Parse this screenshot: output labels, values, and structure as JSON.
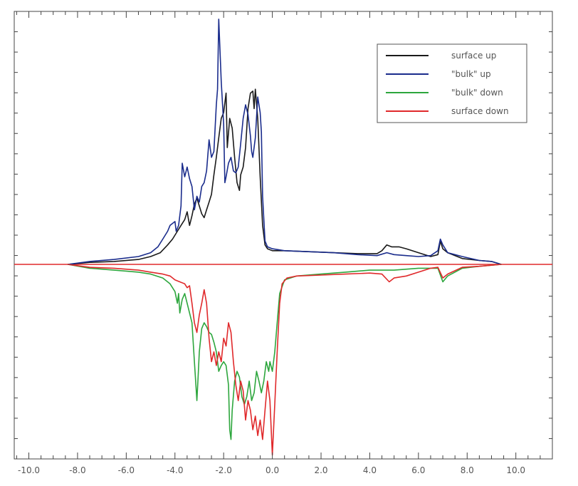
{
  "chart_data": {
    "type": "line",
    "title": "",
    "xlabel": "",
    "ylabel": "",
    "xlim": [
      -10.6,
      11.5
    ],
    "ylim": [
      -1.0,
      1.3
    ],
    "x_ticks": [
      -10.0,
      -8.0,
      -6.0,
      -4.0,
      -2.0,
      0.0,
      2.0,
      4.0,
      6.0,
      8.0,
      10.0
    ],
    "x_tick_labels": [
      "-10.0",
      "-8.0",
      "-6.0",
      "-4.0",
      "-2.0",
      "0.0",
      "2.0",
      "4.0",
      "6.0",
      "8.0",
      "10.0"
    ],
    "grid": false,
    "legend_position": "top-right",
    "zero_line_color": "#e0292b",
    "series": [
      {
        "name": "surface up",
        "color": "#1a1a1a",
        "points": [
          [
            -8.4,
            0.0
          ],
          [
            -7.5,
            0.01
          ],
          [
            -6.5,
            0.015
          ],
          [
            -5.5,
            0.025
          ],
          [
            -5.0,
            0.04
          ],
          [
            -4.6,
            0.06
          ],
          [
            -4.3,
            0.1
          ],
          [
            -4.1,
            0.13
          ],
          [
            -3.9,
            0.17
          ],
          [
            -3.75,
            0.2
          ],
          [
            -3.6,
            0.23
          ],
          [
            -3.5,
            0.27
          ],
          [
            -3.4,
            0.2
          ],
          [
            -3.3,
            0.25
          ],
          [
            -3.2,
            0.31
          ],
          [
            -3.1,
            0.34
          ],
          [
            -3.0,
            0.3
          ],
          [
            -2.9,
            0.26
          ],
          [
            -2.8,
            0.24
          ],
          [
            -2.7,
            0.28
          ],
          [
            -2.6,
            0.32
          ],
          [
            -2.5,
            0.36
          ],
          [
            -2.4,
            0.46
          ],
          [
            -2.3,
            0.55
          ],
          [
            -2.2,
            0.65
          ],
          [
            -2.1,
            0.75
          ],
          [
            -2.0,
            0.78
          ],
          [
            -1.9,
            0.88
          ],
          [
            -1.85,
            0.6
          ],
          [
            -1.75,
            0.75
          ],
          [
            -1.65,
            0.7
          ],
          [
            -1.55,
            0.55
          ],
          [
            -1.45,
            0.42
          ],
          [
            -1.35,
            0.38
          ],
          [
            -1.3,
            0.46
          ],
          [
            -1.2,
            0.5
          ],
          [
            -1.1,
            0.6
          ],
          [
            -1.0,
            0.8
          ],
          [
            -0.9,
            0.88
          ],
          [
            -0.8,
            0.89
          ],
          [
            -0.75,
            0.8
          ],
          [
            -0.7,
            0.9
          ],
          [
            -0.6,
            0.75
          ],
          [
            -0.55,
            0.6
          ],
          [
            -0.5,
            0.45
          ],
          [
            -0.4,
            0.2
          ],
          [
            -0.3,
            0.1
          ],
          [
            -0.2,
            0.08
          ],
          [
            0.0,
            0.07
          ],
          [
            0.5,
            0.07
          ],
          [
            1.5,
            0.065
          ],
          [
            2.5,
            0.06
          ],
          [
            3.5,
            0.055
          ],
          [
            4.3,
            0.055
          ],
          [
            4.5,
            0.07
          ],
          [
            4.7,
            0.1
          ],
          [
            4.9,
            0.09
          ],
          [
            5.2,
            0.09
          ],
          [
            5.5,
            0.08
          ],
          [
            6.0,
            0.06
          ],
          [
            6.5,
            0.04
          ],
          [
            6.8,
            0.05
          ],
          [
            6.9,
            0.12
          ],
          [
            7.0,
            0.08
          ],
          [
            7.2,
            0.06
          ],
          [
            7.8,
            0.03
          ],
          [
            8.5,
            0.02
          ],
          [
            9.0,
            0.015
          ],
          [
            9.4,
            0.0
          ]
        ]
      },
      {
        "name": "\"bulk\" up",
        "color": "#1a2c8c",
        "points": [
          [
            -8.4,
            0.0
          ],
          [
            -7.5,
            0.015
          ],
          [
            -6.5,
            0.025
          ],
          [
            -5.5,
            0.04
          ],
          [
            -5.0,
            0.06
          ],
          [
            -4.7,
            0.09
          ],
          [
            -4.5,
            0.13
          ],
          [
            -4.3,
            0.17
          ],
          [
            -4.2,
            0.2
          ],
          [
            -4.0,
            0.22
          ],
          [
            -3.95,
            0.17
          ],
          [
            -3.85,
            0.2
          ],
          [
            -3.75,
            0.3
          ],
          [
            -3.7,
            0.52
          ],
          [
            -3.6,
            0.45
          ],
          [
            -3.5,
            0.5
          ],
          [
            -3.4,
            0.44
          ],
          [
            -3.3,
            0.4
          ],
          [
            -3.2,
            0.28
          ],
          [
            -3.1,
            0.35
          ],
          [
            -3.0,
            0.32
          ],
          [
            -2.9,
            0.4
          ],
          [
            -2.8,
            0.42
          ],
          [
            -2.7,
            0.48
          ],
          [
            -2.6,
            0.64
          ],
          [
            -2.5,
            0.55
          ],
          [
            -2.4,
            0.58
          ],
          [
            -2.3,
            0.82
          ],
          [
            -2.25,
            0.9
          ],
          [
            -2.2,
            1.26
          ],
          [
            -2.1,
            0.94
          ],
          [
            -2.0,
            0.72
          ],
          [
            -1.95,
            0.42
          ],
          [
            -1.9,
            0.45
          ],
          [
            -1.8,
            0.52
          ],
          [
            -1.7,
            0.55
          ],
          [
            -1.6,
            0.48
          ],
          [
            -1.5,
            0.47
          ],
          [
            -1.4,
            0.5
          ],
          [
            -1.3,
            0.62
          ],
          [
            -1.2,
            0.75
          ],
          [
            -1.1,
            0.82
          ],
          [
            -1.0,
            0.77
          ],
          [
            -0.9,
            0.66
          ],
          [
            -0.85,
            0.58
          ],
          [
            -0.8,
            0.55
          ],
          [
            -0.7,
            0.65
          ],
          [
            -0.6,
            0.86
          ],
          [
            -0.5,
            0.78
          ],
          [
            -0.45,
            0.68
          ],
          [
            -0.4,
            0.35
          ],
          [
            -0.3,
            0.12
          ],
          [
            -0.2,
            0.09
          ],
          [
            0.0,
            0.08
          ],
          [
            0.5,
            0.07
          ],
          [
            1.5,
            0.065
          ],
          [
            2.5,
            0.06
          ],
          [
            3.5,
            0.05
          ],
          [
            4.3,
            0.045
          ],
          [
            4.7,
            0.06
          ],
          [
            5.0,
            0.05
          ],
          [
            5.5,
            0.045
          ],
          [
            6.0,
            0.04
          ],
          [
            6.5,
            0.045
          ],
          [
            6.8,
            0.07
          ],
          [
            6.9,
            0.13
          ],
          [
            7.0,
            0.1
          ],
          [
            7.2,
            0.06
          ],
          [
            7.8,
            0.04
          ],
          [
            8.5,
            0.02
          ],
          [
            9.0,
            0.015
          ],
          [
            9.4,
            0.0
          ]
        ]
      },
      {
        "name": "\"bulk\" down",
        "color": "#2da63d",
        "points": [
          [
            -8.4,
            0.0
          ],
          [
            -7.5,
            -0.02
          ],
          [
            -6.5,
            -0.03
          ],
          [
            -5.5,
            -0.04
          ],
          [
            -5.0,
            -0.05
          ],
          [
            -4.5,
            -0.07
          ],
          [
            -4.2,
            -0.1
          ],
          [
            -4.0,
            -0.14
          ],
          [
            -3.9,
            -0.2
          ],
          [
            -3.85,
            -0.15
          ],
          [
            -3.8,
            -0.25
          ],
          [
            -3.7,
            -0.18
          ],
          [
            -3.6,
            -0.15
          ],
          [
            -3.5,
            -0.2
          ],
          [
            -3.4,
            -0.25
          ],
          [
            -3.3,
            -0.3
          ],
          [
            -3.2,
            -0.5
          ],
          [
            -3.1,
            -0.7
          ],
          [
            -3.05,
            -0.58
          ],
          [
            -3.0,
            -0.45
          ],
          [
            -2.9,
            -0.33
          ],
          [
            -2.8,
            -0.3
          ],
          [
            -2.7,
            -0.32
          ],
          [
            -2.6,
            -0.35
          ],
          [
            -2.5,
            -0.36
          ],
          [
            -2.4,
            -0.4
          ],
          [
            -2.3,
            -0.45
          ],
          [
            -2.2,
            -0.55
          ],
          [
            -2.1,
            -0.52
          ],
          [
            -2.0,
            -0.5
          ],
          [
            -1.9,
            -0.52
          ],
          [
            -1.8,
            -0.62
          ],
          [
            -1.75,
            -0.85
          ],
          [
            -1.7,
            -0.9
          ],
          [
            -1.65,
            -0.75
          ],
          [
            -1.55,
            -0.6
          ],
          [
            -1.45,
            -0.55
          ],
          [
            -1.35,
            -0.58
          ],
          [
            -1.25,
            -0.68
          ],
          [
            -1.15,
            -0.72
          ],
          [
            -1.05,
            -0.68
          ],
          [
            -0.95,
            -0.6
          ],
          [
            -0.85,
            -0.7
          ],
          [
            -0.75,
            -0.66
          ],
          [
            -0.65,
            -0.55
          ],
          [
            -0.55,
            -0.6
          ],
          [
            -0.45,
            -0.66
          ],
          [
            -0.35,
            -0.6
          ],
          [
            -0.25,
            -0.5
          ],
          [
            -0.15,
            -0.55
          ],
          [
            -0.1,
            -0.5
          ],
          [
            0.0,
            -0.55
          ],
          [
            0.1,
            -0.45
          ],
          [
            0.2,
            -0.3
          ],
          [
            0.3,
            -0.15
          ],
          [
            0.5,
            -0.08
          ],
          [
            1.0,
            -0.06
          ],
          [
            2.0,
            -0.05
          ],
          [
            3.0,
            -0.04
          ],
          [
            4.0,
            -0.03
          ],
          [
            5.0,
            -0.03
          ],
          [
            6.0,
            -0.02
          ],
          [
            6.8,
            -0.02
          ],
          [
            7.0,
            -0.09
          ],
          [
            7.2,
            -0.06
          ],
          [
            7.8,
            -0.02
          ],
          [
            8.5,
            -0.01
          ],
          [
            9.4,
            0.0
          ]
        ]
      },
      {
        "name": "surface down",
        "color": "#e0292b",
        "points": [
          [
            -8.4,
            0.0
          ],
          [
            -7.5,
            -0.015
          ],
          [
            -6.5,
            -0.02
          ],
          [
            -5.5,
            -0.03
          ],
          [
            -5.0,
            -0.04
          ],
          [
            -4.5,
            -0.05
          ],
          [
            -4.2,
            -0.06
          ],
          [
            -4.0,
            -0.08
          ],
          [
            -3.8,
            -0.09
          ],
          [
            -3.6,
            -0.1
          ],
          [
            -3.5,
            -0.12
          ],
          [
            -3.4,
            -0.11
          ],
          [
            -3.3,
            -0.2
          ],
          [
            -3.2,
            -0.3
          ],
          [
            -3.1,
            -0.35
          ],
          [
            -3.0,
            -0.26
          ],
          [
            -2.9,
            -0.2
          ],
          [
            -2.8,
            -0.13
          ],
          [
            -2.7,
            -0.2
          ],
          [
            -2.6,
            -0.38
          ],
          [
            -2.5,
            -0.5
          ],
          [
            -2.4,
            -0.45
          ],
          [
            -2.3,
            -0.52
          ],
          [
            -2.2,
            -0.45
          ],
          [
            -2.1,
            -0.5
          ],
          [
            -2.0,
            -0.38
          ],
          [
            -1.9,
            -0.42
          ],
          [
            -1.8,
            -0.3
          ],
          [
            -1.7,
            -0.35
          ],
          [
            -1.6,
            -0.5
          ],
          [
            -1.5,
            -0.62
          ],
          [
            -1.4,
            -0.7
          ],
          [
            -1.3,
            -0.6
          ],
          [
            -1.2,
            -0.65
          ],
          [
            -1.1,
            -0.8
          ],
          [
            -1.0,
            -0.7
          ],
          [
            -0.9,
            -0.75
          ],
          [
            -0.8,
            -0.85
          ],
          [
            -0.7,
            -0.78
          ],
          [
            -0.6,
            -0.88
          ],
          [
            -0.5,
            -0.8
          ],
          [
            -0.4,
            -0.9
          ],
          [
            -0.3,
            -0.75
          ],
          [
            -0.2,
            -0.6
          ],
          [
            -0.1,
            -0.7
          ],
          [
            0.0,
            -0.98
          ],
          [
            0.05,
            -0.85
          ],
          [
            0.1,
            -0.72
          ],
          [
            0.2,
            -0.45
          ],
          [
            0.3,
            -0.2
          ],
          [
            0.4,
            -0.1
          ],
          [
            0.6,
            -0.07
          ],
          [
            1.0,
            -0.06
          ],
          [
            2.0,
            -0.055
          ],
          [
            3.0,
            -0.05
          ],
          [
            4.0,
            -0.045
          ],
          [
            4.5,
            -0.05
          ],
          [
            4.8,
            -0.09
          ],
          [
            5.0,
            -0.07
          ],
          [
            5.5,
            -0.06
          ],
          [
            6.0,
            -0.04
          ],
          [
            6.5,
            -0.02
          ],
          [
            6.8,
            -0.015
          ],
          [
            7.0,
            -0.07
          ],
          [
            7.2,
            -0.05
          ],
          [
            7.8,
            -0.015
          ],
          [
            8.5,
            -0.01
          ],
          [
            9.4,
            0.0
          ]
        ]
      }
    ]
  }
}
